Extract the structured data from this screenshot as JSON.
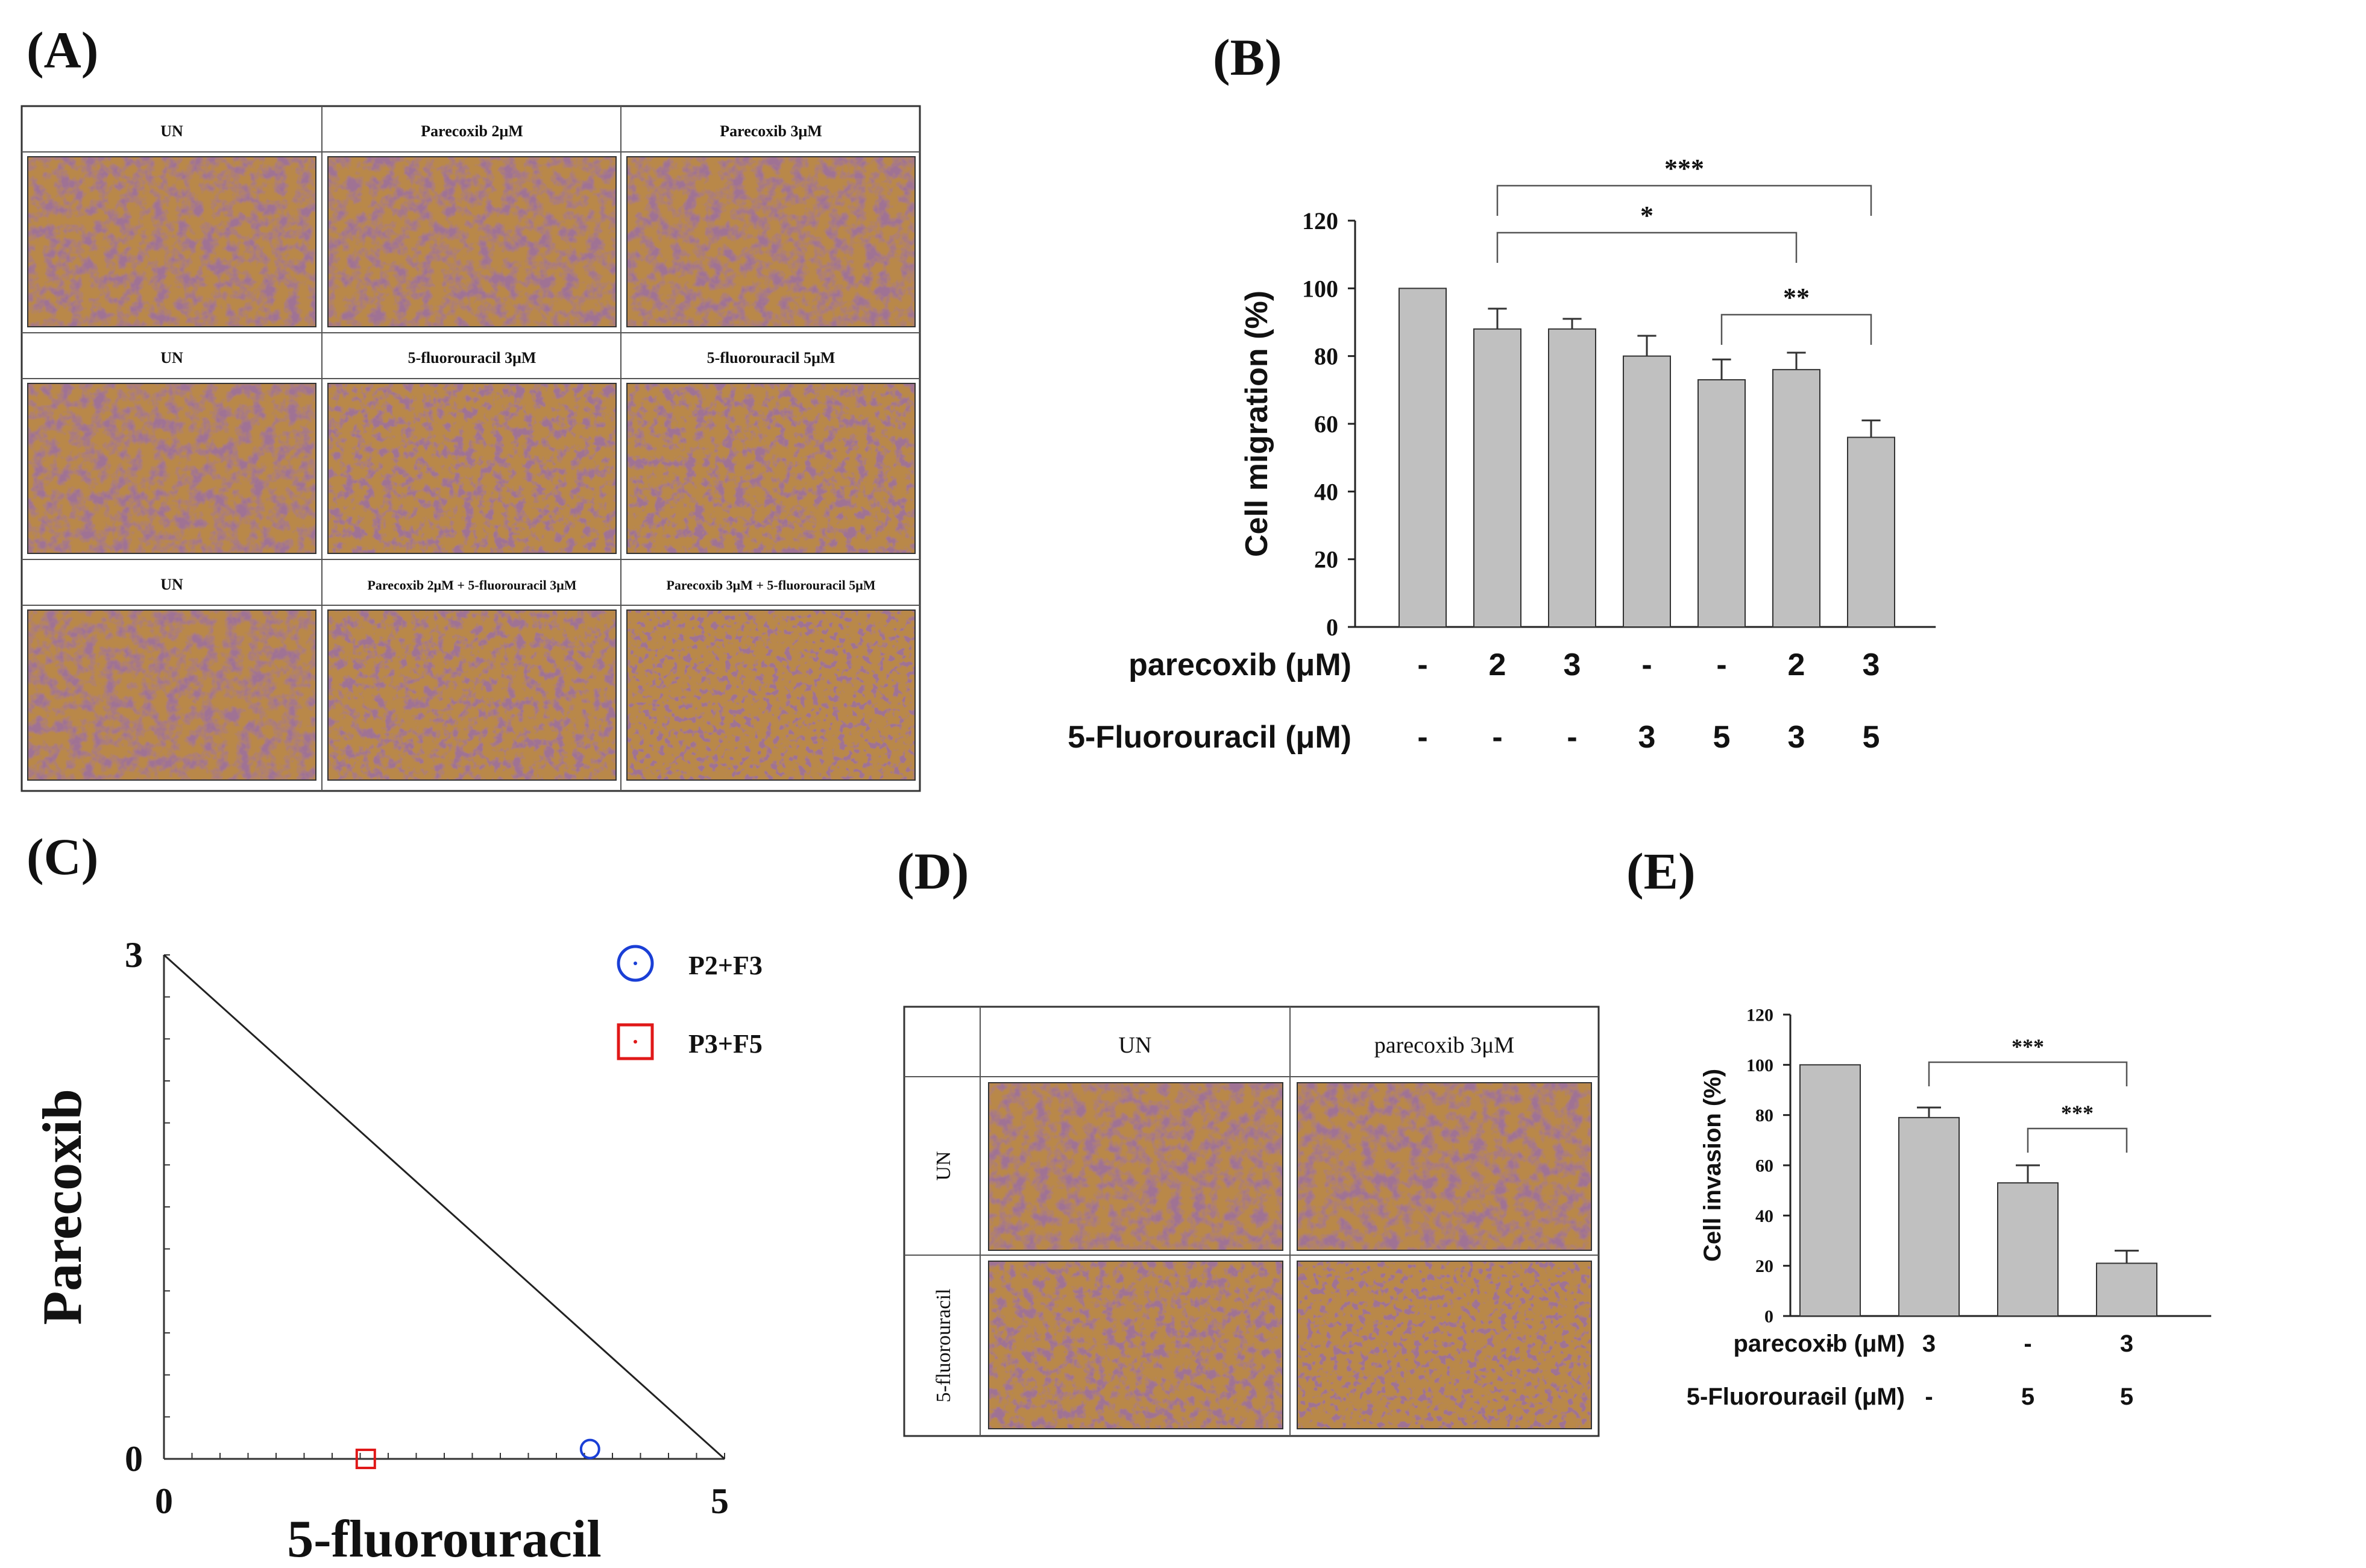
{
  "panel_labels": {
    "a": "(A)",
    "b": "(B)",
    "c": "(C)",
    "d": "(D)",
    "e": "(E)"
  },
  "micrograph_a": {
    "rows": [
      [
        "UN",
        "Parecoxib 2μM",
        "Parecoxib 3μM"
      ],
      [
        "UN",
        "5-fluorouracil 3μM",
        "5-fluorouracil 5μM"
      ],
      [
        "UN",
        "Parecoxib 2μM + 5-fluorouracil 3μM",
        "Parecoxib 3μM + 5-fluorouracil 5μM"
      ]
    ]
  },
  "micrograph_d": {
    "columns": [
      "UN",
      "parecoxib 3μM"
    ],
    "rows": [
      "UN",
      "5-fluorouracil"
    ]
  },
  "colors": {
    "bar": "#c0c0c0",
    "axis": "#222222",
    "cell_bg": "#b98848",
    "cell_dark": "#5a2c4e",
    "marker_blue": "#1a3fd6",
    "marker_red": "#e01818"
  },
  "chart_data": [
    {
      "id": "B",
      "type": "bar",
      "ylabel": "Cell migration (%)",
      "ylim": [
        0,
        120
      ],
      "yticks": [
        "0",
        "20",
        "40",
        "60",
        "80",
        "100",
        "120"
      ],
      "categories": [
        "1",
        "2",
        "3",
        "4",
        "5",
        "6",
        "7"
      ],
      "values": [
        100,
        88,
        88,
        80,
        73,
        76,
        56
      ],
      "errors": [
        0,
        6,
        3,
        6,
        6,
        5,
        5
      ],
      "condition_rows": [
        {
          "label": "parecoxib (μM)",
          "values": [
            "-",
            "2",
            "3",
            "-",
            "-",
            "2",
            "3"
          ]
        },
        {
          "label": "5-Fluorouracil (μM)",
          "values": [
            "-",
            "-",
            "-",
            "3",
            "5",
            "3",
            "5"
          ]
        }
      ],
      "significance": [
        {
          "from": 2,
          "to": 7,
          "label": "***"
        },
        {
          "from": 2,
          "to": 6,
          "label": "*"
        },
        {
          "from": 5,
          "to": 7,
          "label": "**"
        }
      ]
    },
    {
      "id": "C",
      "type": "scatter",
      "xlabel": "5-fluorouracil",
      "ylabel": "Parecoxib",
      "xlim": [
        0,
        5
      ],
      "ylim": [
        0,
        3
      ],
      "xtick_labels": [
        "0",
        "5"
      ],
      "ytick_labels": [
        "0",
        "3"
      ],
      "isobole": {
        "x": [
          0,
          5
        ],
        "y": [
          3,
          0
        ]
      },
      "series": [
        {
          "name": "P2+F3",
          "marker": "circle",
          "color": "#1a3fd6",
          "x": 3.8,
          "y": 0.03
        },
        {
          "name": "P3+F5",
          "marker": "square",
          "color": "#e01818",
          "x": 1.8,
          "y": 0.0
        }
      ]
    },
    {
      "id": "E",
      "type": "bar",
      "ylabel": "Cell invasion (%)",
      "ylim": [
        0,
        120
      ],
      "yticks": [
        "0",
        "20",
        "40",
        "60",
        "80",
        "100",
        "120"
      ],
      "categories": [
        "1",
        "2",
        "3",
        "4"
      ],
      "values": [
        100,
        79,
        53,
        21
      ],
      "errors": [
        0,
        4,
        7,
        5
      ],
      "condition_rows": [
        {
          "label": "parecoxib (μM)",
          "values": [
            "-",
            "3",
            "-",
            "3"
          ]
        },
        {
          "label": "5-Fluorouracil (μM)",
          "values": [
            "-",
            "-",
            "5",
            "5"
          ]
        }
      ],
      "significance": [
        {
          "from": 2,
          "to": 4,
          "label": "***"
        },
        {
          "from": 3,
          "to": 4,
          "label": "***"
        }
      ]
    }
  ]
}
